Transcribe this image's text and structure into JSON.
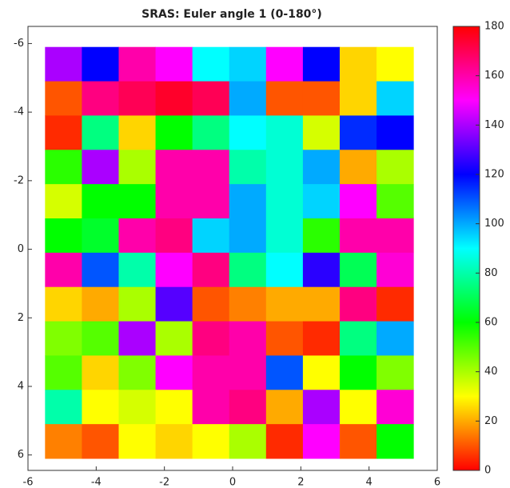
{
  "chart_data": {
    "type": "heatmap",
    "title": "SRAS: Euler angle 1 (0-180°)",
    "colormap": "hsv",
    "xlim": [
      -6,
      6
    ],
    "ylim": [
      -6.5,
      6.45
    ],
    "y_reversed": true,
    "xticks": [
      -6,
      -4,
      -2,
      0,
      2,
      4,
      6
    ],
    "yticks": [
      -6,
      -4,
      -2,
      0,
      2,
      4,
      6
    ],
    "clim": [
      0,
      180
    ],
    "cticks": [
      0,
      20,
      40,
      60,
      80,
      100,
      120,
      140,
      160,
      180
    ],
    "x": [
      -4.96,
      -3.88,
      -2.8,
      -1.72,
      -0.64,
      0.44,
      1.52,
      2.6,
      3.68,
      4.76
    ],
    "y": [
      -5.4,
      -4.4,
      -3.4,
      -2.4,
      -1.4,
      -0.4,
      0.6,
      1.6,
      2.6,
      3.6,
      4.6,
      5.6
    ],
    "values": [
      [
        140,
        120,
        160,
        150,
        90,
        95,
        150,
        120,
        25,
        30
      ],
      [
        10,
        165,
        170,
        175,
        170,
        100,
        10,
        10,
        25,
        95
      ],
      [
        5,
        75,
        25,
        60,
        75,
        90,
        85,
        35,
        115,
        120
      ],
      [
        55,
        140,
        40,
        160,
        160,
        80,
        85,
        100,
        20,
        40
      ],
      [
        35,
        60,
        60,
        160,
        160,
        100,
        85,
        95,
        150,
        50
      ],
      [
        60,
        65,
        160,
        165,
        95,
        100,
        85,
        55,
        160,
        160
      ],
      [
        160,
        110,
        80,
        150,
        165,
        75,
        90,
        125,
        70,
        155
      ],
      [
        25,
        20,
        40,
        130,
        10,
        15,
        20,
        20,
        165,
        5
      ],
      [
        45,
        50,
        140,
        40,
        165,
        160,
        10,
        5,
        75,
        100
      ],
      [
        50,
        25,
        45,
        150,
        160,
        160,
        110,
        30,
        60,
        45
      ],
      [
        80,
        30,
        35,
        30,
        160,
        165,
        20,
        140,
        30,
        155
      ],
      [
        15,
        10,
        30,
        25,
        30,
        40,
        5,
        150,
        10,
        60
      ]
    ]
  }
}
